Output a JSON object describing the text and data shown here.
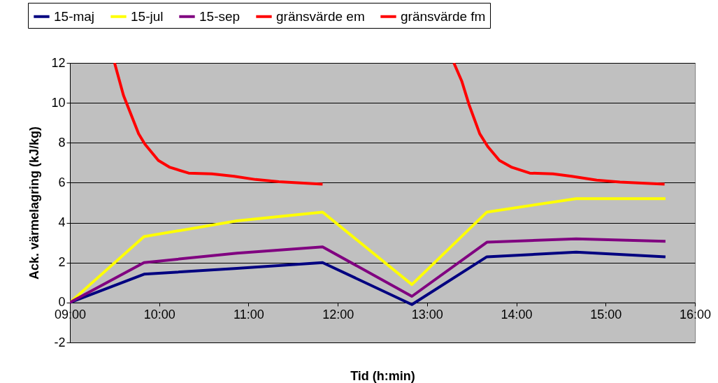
{
  "chart_data": {
    "type": "line",
    "xlabel": "Tid (h:min)",
    "ylabel": "Ack. värmelagring (kJ/kg)",
    "xlim": [
      9,
      16
    ],
    "ylim": [
      -2,
      12
    ],
    "xticks": [
      {
        "value": 9,
        "label": "09:00"
      },
      {
        "value": 10,
        "label": "10:00"
      },
      {
        "value": 11,
        "label": "11:00"
      },
      {
        "value": 12,
        "label": "12:00"
      },
      {
        "value": 13,
        "label": "13:00"
      },
      {
        "value": 14,
        "label": "14:00"
      },
      {
        "value": 15,
        "label": "15:00"
      },
      {
        "value": 16,
        "label": "16:00"
      }
    ],
    "yticks": [
      -2,
      0,
      2,
      4,
      6,
      8,
      10,
      12
    ],
    "grid": "y",
    "legend": "top",
    "marker": "none",
    "line_style": "solid",
    "series": [
      {
        "name": "15-maj",
        "color": "#000080",
        "x": [
          9,
          9.83,
          10.87,
          11.83,
          12.83,
          13.67,
          14.67,
          15.67
        ],
        "values": [
          0,
          1.42,
          1.71,
          2.0,
          -0.1,
          2.29,
          2.52,
          2.29
        ]
      },
      {
        "name": "15-jul",
        "color": "#ffff00",
        "x": [
          9,
          9.83,
          10.87,
          11.83,
          12.83,
          13.67,
          14.67,
          15.67
        ],
        "values": [
          0,
          3.3,
          4.09,
          4.53,
          0.9,
          4.53,
          5.2,
          5.2
        ]
      },
      {
        "name": "15-sep",
        "color": "#800080",
        "x": [
          9,
          9.83,
          10.87,
          11.83,
          12.83,
          13.67,
          14.67,
          15.67
        ],
        "values": [
          0,
          2.0,
          2.47,
          2.79,
          0.31,
          3.02,
          3.19,
          3.07
        ]
      },
      {
        "name": "gränsvärde em",
        "color": "#ff0000",
        "x": [
          9.5,
          9.6,
          9.77,
          9.84,
          9.99,
          10.12,
          10.33,
          10.59,
          10.84,
          11.08,
          11.34,
          11.83
        ],
        "values": [
          12,
          10.37,
          8.45,
          7.93,
          7.12,
          6.77,
          6.48,
          6.44,
          6.32,
          6.16,
          6.05,
          5.93
        ]
      },
      {
        "name": "gränsvärde fm",
        "color": "#ff0000",
        "x": [
          13.3,
          13.39,
          13.47,
          13.59,
          13.68,
          13.81,
          13.95,
          14.15,
          14.41,
          14.62,
          14.9,
          15.16,
          15.66
        ],
        "values": [
          12,
          11.07,
          9.91,
          8.45,
          7.81,
          7.12,
          6.77,
          6.48,
          6.44,
          6.32,
          6.13,
          6.03,
          5.93
        ]
      }
    ]
  }
}
